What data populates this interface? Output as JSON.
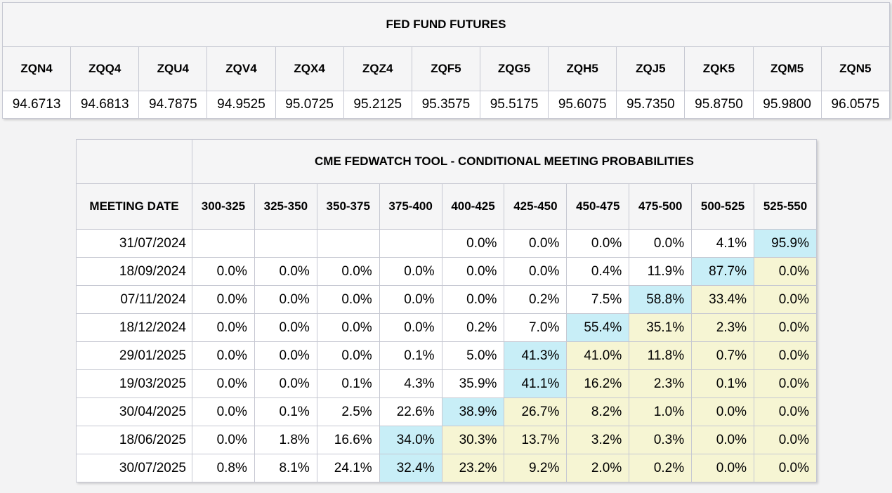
{
  "futures_table": {
    "title": "FED FUND FUTURES",
    "contracts": [
      "ZQN4",
      "ZQQ4",
      "ZQU4",
      "ZQV4",
      "ZQX4",
      "ZQZ4",
      "ZQF5",
      "ZQG5",
      "ZQH5",
      "ZQJ5",
      "ZQK5",
      "ZQM5",
      "ZQN5"
    ],
    "prices": [
      "94.6713",
      "94.6813",
      "94.7875",
      "94.9525",
      "95.0725",
      "95.2125",
      "95.3575",
      "95.5175",
      "95.6075",
      "95.7350",
      "95.8750",
      "95.9800",
      "96.0575"
    ]
  },
  "fedwatch_table": {
    "title": "CME FEDWATCH TOOL - CONDITIONAL MEETING PROBABILITIES",
    "date_header": "MEETING DATE",
    "rate_ranges": [
      "300-325",
      "325-350",
      "350-375",
      "375-400",
      "400-425",
      "425-450",
      "450-475",
      "475-500",
      "500-525",
      "525-550"
    ],
    "rows": [
      {
        "date": "31/07/2024",
        "values": [
          "",
          "",
          "",
          "",
          "0.0%",
          "0.0%",
          "0.0%",
          "0.0%",
          "4.1%",
          "95.9%"
        ],
        "highlight_index": 9
      },
      {
        "date": "18/09/2024",
        "values": [
          "0.0%",
          "0.0%",
          "0.0%",
          "0.0%",
          "0.0%",
          "0.0%",
          "0.4%",
          "11.9%",
          "87.7%",
          "0.0%"
        ],
        "highlight_index": 8
      },
      {
        "date": "07/11/2024",
        "values": [
          "0.0%",
          "0.0%",
          "0.0%",
          "0.0%",
          "0.0%",
          "0.2%",
          "7.5%",
          "58.8%",
          "33.4%",
          "0.0%"
        ],
        "highlight_index": 7
      },
      {
        "date": "18/12/2024",
        "values": [
          "0.0%",
          "0.0%",
          "0.0%",
          "0.0%",
          "0.2%",
          "7.0%",
          "55.4%",
          "35.1%",
          "2.3%",
          "0.0%"
        ],
        "highlight_index": 6
      },
      {
        "date": "29/01/2025",
        "values": [
          "0.0%",
          "0.0%",
          "0.0%",
          "0.1%",
          "5.0%",
          "41.3%",
          "41.0%",
          "11.8%",
          "0.7%",
          "0.0%"
        ],
        "highlight_index": 5
      },
      {
        "date": "19/03/2025",
        "values": [
          "0.0%",
          "0.0%",
          "0.1%",
          "4.3%",
          "35.9%",
          "41.1%",
          "16.2%",
          "2.3%",
          "0.1%",
          "0.0%"
        ],
        "highlight_index": 5
      },
      {
        "date": "30/04/2025",
        "values": [
          "0.0%",
          "0.1%",
          "2.5%",
          "22.6%",
          "38.9%",
          "26.7%",
          "8.2%",
          "1.0%",
          "0.0%",
          "0.0%"
        ],
        "highlight_index": 4
      },
      {
        "date": "18/06/2025",
        "values": [
          "0.0%",
          "1.8%",
          "16.6%",
          "34.0%",
          "30.3%",
          "13.7%",
          "3.2%",
          "0.3%",
          "0.0%",
          "0.0%"
        ],
        "highlight_index": 3
      },
      {
        "date": "30/07/2025",
        "values": [
          "0.8%",
          "8.1%",
          "24.1%",
          "32.4%",
          "23.2%",
          "9.2%",
          "2.0%",
          "0.2%",
          "0.0%",
          "0.0%"
        ],
        "highlight_index": 3
      }
    ]
  },
  "colors": {
    "highlight_cyan": "#c8eef7",
    "highlight_yellow": "#f6f5d3",
    "header_bg": "#f5f5f6",
    "page_bg": "#f3f3f4",
    "border_inner": "#c6c8d2",
    "border_outer": "#a3a7b1"
  }
}
